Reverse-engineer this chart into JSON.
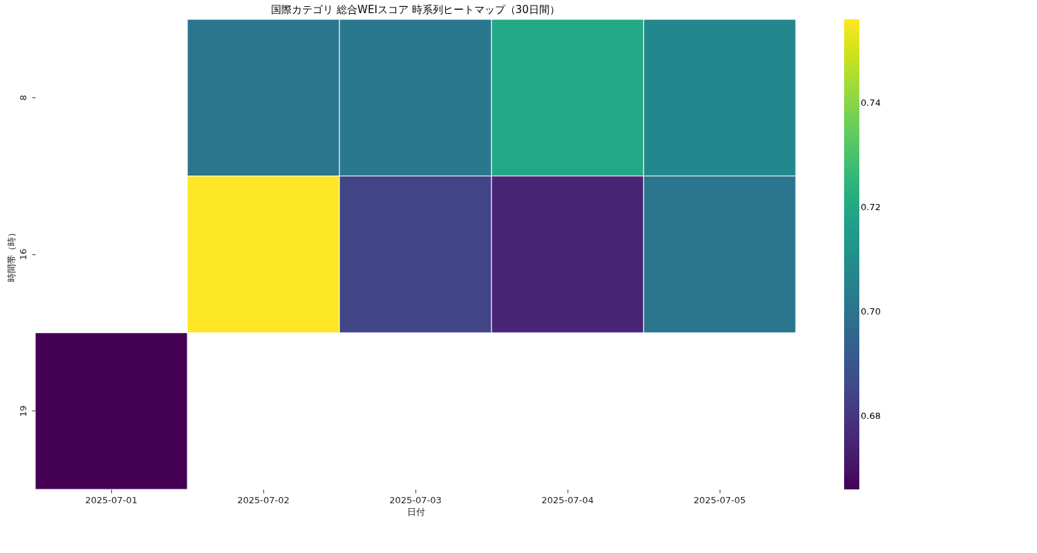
{
  "chart_data": {
    "type": "heatmap",
    "title": "国際カテゴリ 総合WEIスコア 時系列ヒートマップ（30日間）",
    "xlabel": "日付",
    "ylabel": "時間帯（時）",
    "categories": [
      "2025-07-01",
      "2025-07-02",
      "2025-07-03",
      "2025-07-04",
      "2025-07-05"
    ],
    "y_categories": [
      "8",
      "16",
      "19"
    ],
    "cells": [
      [
        null,
        0.701,
        0.702,
        0.72,
        0.708
      ],
      [
        null,
        0.756,
        0.684,
        0.675,
        0.701
      ],
      [
        0.666,
        null,
        null,
        null,
        null
      ]
    ],
    "clim": [
      0.666,
      0.756
    ],
    "cticks": [
      0.68,
      {
        "value": 0.7,
        "label": "0.70"
      },
      0.72,
      0.74
    ]
  }
}
